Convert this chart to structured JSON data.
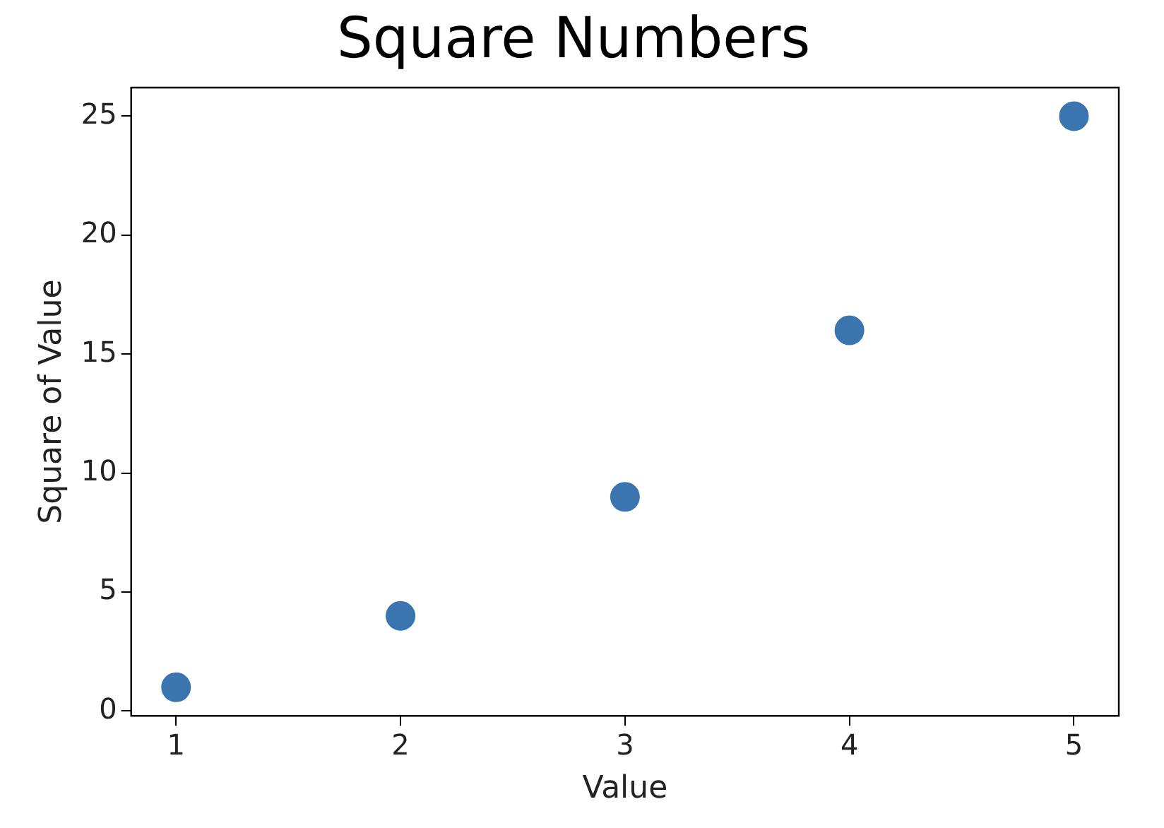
{
  "chart_data": {
    "type": "scatter",
    "title": "Square Numbers",
    "xlabel": "Value",
    "ylabel": "Square of Value",
    "x": [
      1,
      2,
      3,
      4,
      5
    ],
    "values": [
      1,
      4,
      9,
      16,
      25
    ],
    "color": "#3a75b0",
    "marker": "circle",
    "xlim": [
      0.8,
      5.2
    ],
    "xticks": [
      1,
      2,
      3,
      4,
      5
    ],
    "ylim": [
      -0.2,
      26.2
    ],
    "yticks": [
      0,
      5,
      10,
      15,
      20,
      25
    ],
    "grid": false,
    "legend": false
  }
}
